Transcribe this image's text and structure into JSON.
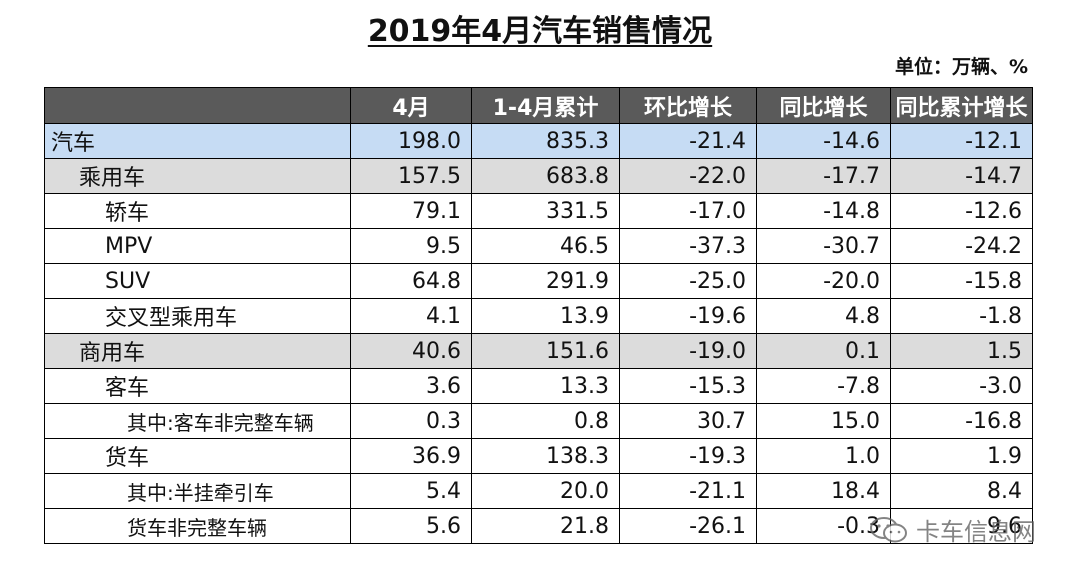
{
  "title": "2019年4月汽车销售情况",
  "unit": "单位：万辆、%",
  "headers": [
    "",
    "4月",
    "1-4月累计",
    "环比增长",
    "同比增长",
    "同比累计增长"
  ],
  "rows": [
    {
      "label": "汽车",
      "values": [
        "198.0",
        "835.3",
        "-21.4",
        "-14.6",
        "-12.1"
      ]
    },
    {
      "label": "乘用车",
      "values": [
        "157.5",
        "683.8",
        "-22.0",
        "-17.7",
        "-14.7"
      ]
    },
    {
      "label": "轿车",
      "values": [
        "79.1",
        "331.5",
        "-17.0",
        "-14.8",
        "-12.6"
      ]
    },
    {
      "label": "MPV",
      "values": [
        "9.5",
        "46.5",
        "-37.3",
        "-30.7",
        "-24.2"
      ]
    },
    {
      "label": "SUV",
      "values": [
        "64.8",
        "291.9",
        "-25.0",
        "-20.0",
        "-15.8"
      ]
    },
    {
      "label": "交叉型乘用车",
      "values": [
        "4.1",
        "13.9",
        "-19.6",
        "4.8",
        "-1.8"
      ]
    },
    {
      "label": "商用车",
      "values": [
        "40.6",
        "151.6",
        "-19.0",
        "0.1",
        "1.5"
      ]
    },
    {
      "label": "客车",
      "values": [
        "3.6",
        "13.3",
        "-15.3",
        "-7.8",
        "-3.0"
      ]
    },
    {
      "label": "其中:客车非完整车辆",
      "values": [
        "0.3",
        "0.8",
        "30.7",
        "15.0",
        "-16.8"
      ]
    },
    {
      "label": "货车",
      "values": [
        "36.9",
        "138.3",
        "-19.3",
        "1.0",
        "1.9"
      ]
    },
    {
      "label": "其中:半挂牵引车",
      "values": [
        "5.4",
        "20.0",
        "-21.1",
        "18.4",
        "8.4"
      ]
    },
    {
      "label": "货车非完整车辆",
      "values": [
        "5.6",
        "21.8",
        "-26.1",
        "-0.3",
        "9.6"
      ]
    }
  ],
  "watermark": "卡车信息网",
  "colors": {
    "header_bg": "#5a5a5a",
    "total_row_bg": "#c6dcf4",
    "category_row_bg": "#dcdcdc"
  }
}
